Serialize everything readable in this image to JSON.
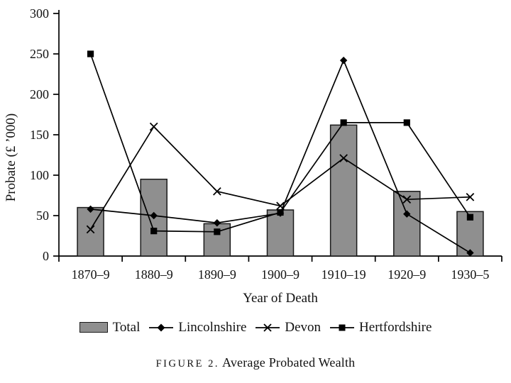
{
  "figure": {
    "caption_label": "FIGURE 2.",
    "caption_text": "Average Probated Wealth"
  },
  "chart_data": {
    "type": "composite bar+line",
    "title": "Average Probated Wealth",
    "xlabel": "Year of Death",
    "ylabel": "Probate (£ ’000)",
    "ylim": [
      0,
      300
    ],
    "ytick_step": 50,
    "ytick_labels": [
      "0",
      "50",
      "100",
      "150",
      "200",
      "250",
      "300"
    ],
    "grid": false,
    "legend_position": "bottom",
    "categories": [
      "1870–9",
      "1880–9",
      "1890–9",
      "1900–9",
      "1910–19",
      "1920–9",
      "1930–5"
    ],
    "series": [
      {
        "name": "Total",
        "type": "bar",
        "marker": "rect",
        "values": [
          60,
          95,
          40,
          57,
          162,
          80,
          55
        ]
      },
      {
        "name": "Lincolnshire",
        "type": "line",
        "marker": "diamond",
        "values": [
          58,
          50,
          41,
          53,
          242,
          52,
          4
        ]
      },
      {
        "name": "Devon",
        "type": "line",
        "marker": "x",
        "values": [
          33,
          160,
          80,
          62,
          121,
          70,
          73
        ]
      },
      {
        "name": "Hertfordshire",
        "type": "line",
        "marker": "square",
        "values": [
          250,
          31,
          30,
          54,
          165,
          165,
          48
        ]
      }
    ],
    "colors": {
      "bar_fill": "#8f8f8f",
      "bar_stroke": "#1a1a1a",
      "line": "#000000",
      "background": "#ffffff",
      "text": "#111111"
    }
  }
}
